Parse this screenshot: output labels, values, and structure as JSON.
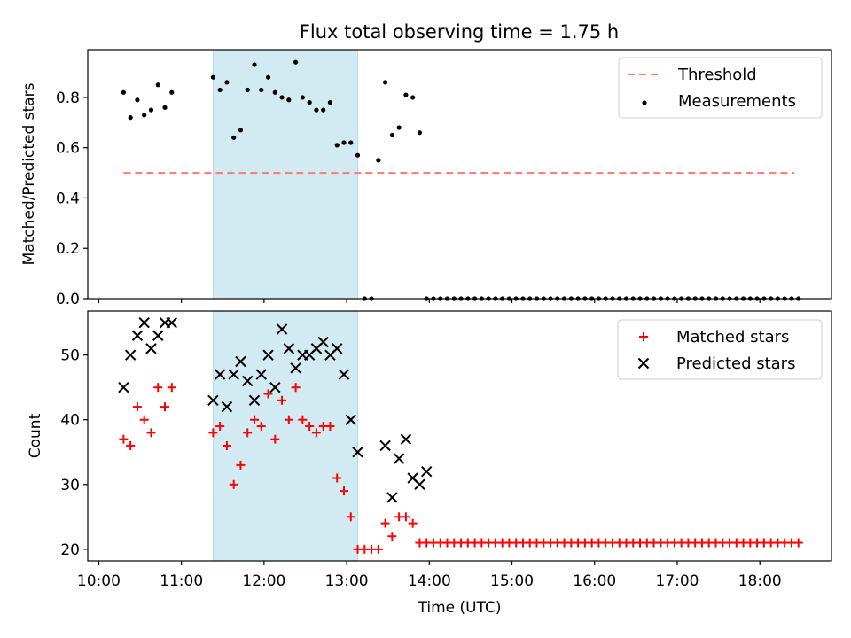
{
  "title": "Flux total observing time = 1.75 h",
  "colors": {
    "background": "#ffffff",
    "shade": "#add8e6",
    "threshold": "#ff7f7f",
    "matched": "#ff0000",
    "predicted": "#000000",
    "measurement": "#000000"
  },
  "chart_data": [
    {
      "type": "scatter",
      "ylabel": "Matched/Predicted stars",
      "xlim": [
        "09:52",
        "18:52"
      ],
      "ylim": [
        0,
        0.99
      ],
      "yticks": [
        "0.0",
        "0.2",
        "0.4",
        "0.6",
        "0.8"
      ],
      "grid": false,
      "legend_position": "upper right",
      "legend": [
        "Threshold",
        "Measurements"
      ],
      "shaded_interval": [
        "11:23",
        "13:08"
      ],
      "threshold": {
        "name": "Threshold",
        "y": 0.5,
        "x_start": "10:18",
        "x_end": "18:25",
        "style": "dashed"
      },
      "series": [
        {
          "name": "Measurements",
          "marker": "dot",
          "x": [
            "10:18",
            "10:23",
            "10:28",
            "10:33",
            "10:38",
            "10:43",
            "10:48",
            "10:53",
            "11:23",
            "11:28",
            "11:33",
            "11:38",
            "11:43",
            "11:48",
            "11:53",
            "11:58",
            "12:03",
            "12:08",
            "12:13",
            "12:18",
            "12:23",
            "12:28",
            "12:33",
            "12:38",
            "12:43",
            "12:48",
            "12:53",
            "12:58",
            "13:03",
            "13:08",
            "13:13",
            "13:18",
            "13:23",
            "13:28",
            "13:33",
            "13:38",
            "13:43",
            "13:48",
            "13:53",
            "13:58",
            "14:03",
            "14:08",
            "14:13",
            "14:18",
            "14:23",
            "14:28",
            "14:33",
            "14:38",
            "14:43",
            "14:48",
            "14:53",
            "14:58",
            "15:03",
            "15:08",
            "15:13",
            "15:18",
            "15:23",
            "15:28",
            "15:33",
            "15:38",
            "15:43",
            "15:48",
            "15:53",
            "15:58",
            "16:03",
            "16:08",
            "16:13",
            "16:18",
            "16:23",
            "16:28",
            "16:33",
            "16:38",
            "16:43",
            "16:48",
            "16:53",
            "16:58",
            "17:03",
            "17:08",
            "17:13",
            "17:18",
            "17:23",
            "17:28",
            "17:33",
            "17:38",
            "17:43",
            "17:48",
            "17:53",
            "17:58",
            "18:03",
            "18:08",
            "18:13",
            "18:18",
            "18:23",
            "18:28"
          ],
          "y": [
            0.82,
            0.72,
            0.79,
            0.73,
            0.75,
            0.85,
            0.76,
            0.82,
            0.88,
            0.83,
            0.86,
            0.64,
            0.67,
            0.83,
            0.93,
            0.83,
            0.88,
            0.82,
            0.8,
            0.79,
            0.94,
            0.8,
            0.78,
            0.75,
            0.75,
            0.78,
            0.61,
            0.62,
            0.62,
            0.57,
            0,
            0,
            0.55,
            0.86,
            0.65,
            0.68,
            0.81,
            0.8,
            0.66,
            0,
            0,
            0,
            0,
            0,
            0,
            0,
            0,
            0,
            0,
            0,
            0,
            0,
            0,
            0,
            0,
            0,
            0,
            0,
            0,
            0,
            0,
            0,
            0,
            0,
            0,
            0,
            0,
            0,
            0,
            0,
            0,
            0,
            0,
            0,
            0,
            0,
            0,
            0,
            0,
            0,
            0,
            0,
            0,
            0,
            0,
            0,
            0,
            0,
            0,
            0,
            0,
            0,
            0,
            0
          ]
        }
      ]
    },
    {
      "type": "scatter",
      "xlabel": "Time (UTC)",
      "ylabel": "Count",
      "xlim": [
        "09:52",
        "18:52"
      ],
      "ylim": [
        18.2,
        56.8
      ],
      "xticks": [
        "10:00",
        "11:00",
        "12:00",
        "13:00",
        "14:00",
        "15:00",
        "16:00",
        "17:00",
        "18:00"
      ],
      "yticks": [
        "20",
        "30",
        "40",
        "50"
      ],
      "grid": false,
      "legend_position": "upper right",
      "shaded_interval": [
        "11:23",
        "13:08"
      ],
      "series": [
        {
          "name": "Matched stars",
          "marker": "plus",
          "x": [
            "10:18",
            "10:23",
            "10:28",
            "10:33",
            "10:38",
            "10:43",
            "10:48",
            "10:53",
            "11:23",
            "11:28",
            "11:33",
            "11:38",
            "11:43",
            "11:48",
            "11:53",
            "11:58",
            "12:03",
            "12:08",
            "12:13",
            "12:18",
            "12:23",
            "12:28",
            "12:33",
            "12:38",
            "12:43",
            "12:48",
            "12:53",
            "12:58",
            "13:03",
            "13:08",
            "13:13",
            "13:18",
            "13:23",
            "13:28",
            "13:33",
            "13:38",
            "13:43",
            "13:48",
            "13:53",
            "13:58",
            "14:03",
            "14:08",
            "14:13",
            "14:18",
            "14:23",
            "14:28",
            "14:33",
            "14:38",
            "14:43",
            "14:48",
            "14:53",
            "14:58",
            "15:03",
            "15:08",
            "15:13",
            "15:18",
            "15:23",
            "15:28",
            "15:33",
            "15:38",
            "15:43",
            "15:48",
            "15:53",
            "15:58",
            "16:03",
            "16:08",
            "16:13",
            "16:18",
            "16:23",
            "16:28",
            "16:33",
            "16:38",
            "16:43",
            "16:48",
            "16:53",
            "16:58",
            "17:03",
            "17:08",
            "17:13",
            "17:18",
            "17:23",
            "17:28",
            "17:33",
            "17:38",
            "17:43",
            "17:48",
            "17:53",
            "17:58",
            "18:03",
            "18:08",
            "18:13",
            "18:18",
            "18:23",
            "18:28"
          ],
          "y": [
            37,
            36,
            42,
            40,
            38,
            45,
            42,
            45,
            38,
            39,
            36,
            30,
            33,
            38,
            40,
            39,
            44,
            37,
            43,
            40,
            45,
            40,
            39,
            38,
            39,
            39,
            31,
            29,
            25,
            20,
            20,
            20,
            20,
            24,
            22,
            25,
            25,
            24,
            21,
            21,
            21,
            21,
            21,
            21,
            21,
            21,
            21,
            21,
            21,
            21,
            21,
            21,
            21,
            21,
            21,
            21,
            21,
            21,
            21,
            21,
            21,
            21,
            21,
            21,
            21,
            21,
            21,
            21,
            21,
            21,
            21,
            21,
            21,
            21,
            21,
            21,
            21,
            21,
            21,
            21,
            21,
            21,
            21,
            21,
            21,
            21,
            21,
            21,
            21,
            21,
            21,
            21,
            21,
            21
          ]
        },
        {
          "name": "Predicted stars",
          "marker": "x",
          "x": [
            "10:18",
            "10:23",
            "10:28",
            "10:33",
            "10:38",
            "10:43",
            "10:48",
            "10:53",
            "11:23",
            "11:28",
            "11:33",
            "11:38",
            "11:43",
            "11:48",
            "11:53",
            "11:58",
            "12:03",
            "12:08",
            "12:13",
            "12:18",
            "12:23",
            "12:28",
            "12:33",
            "12:38",
            "12:43",
            "12:48",
            "12:53",
            "12:58",
            "13:03",
            "13:08",
            "13:28",
            "13:33",
            "13:38",
            "13:43",
            "13:48",
            "13:53",
            "13:58"
          ],
          "y": [
            45,
            50,
            53,
            55,
            51,
            53,
            55,
            55,
            43,
            47,
            42,
            47,
            49,
            46,
            43,
            47,
            50,
            45,
            54,
            51,
            48,
            50,
            50,
            51,
            52,
            50,
            51,
            47,
            40,
            35,
            36,
            28,
            34,
            37,
            31,
            30,
            32
          ]
        }
      ]
    }
  ]
}
